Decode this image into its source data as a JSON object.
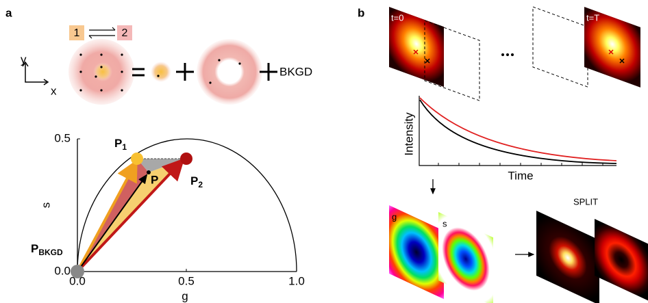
{
  "panel_a": {
    "label": "a",
    "states": [
      "1",
      "2"
    ],
    "axes": [
      "y",
      "x"
    ],
    "bkgd": "BKGD",
    "phasor": {
      "y_label": "s",
      "x_label": "g",
      "yticks": [
        "0.0",
        "0.5"
      ],
      "xticks": [
        "0.0",
        "0.5",
        "1.0"
      ],
      "p1": {
        "main": "P",
        "sub": "1"
      },
      "p": "P",
      "p2": {
        "main": "P",
        "sub": "2"
      },
      "pbkgd": {
        "main": "P",
        "sub": "BKGD"
      }
    }
  },
  "panel_b": {
    "label": "b",
    "frames": [
      "t=0",
      "t=T"
    ],
    "y_label": "Intensity",
    "x_label": "Time",
    "maps": [
      "g",
      "s"
    ],
    "split": "SPLIT"
  }
}
